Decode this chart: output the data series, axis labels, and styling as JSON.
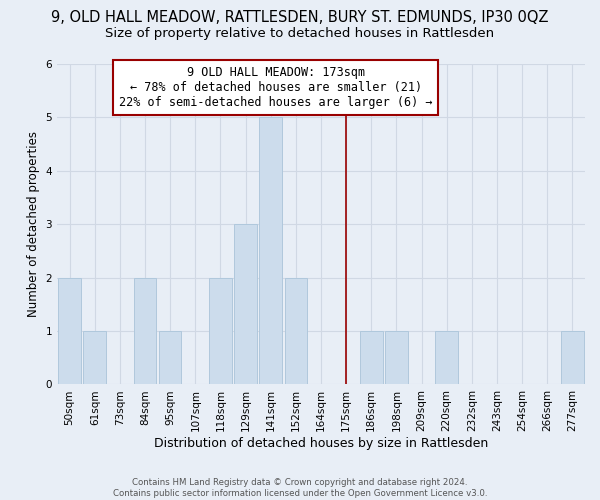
{
  "title": "9, OLD HALL MEADOW, RATTLESDEN, BURY ST. EDMUNDS, IP30 0QZ",
  "subtitle": "Size of property relative to detached houses in Rattlesden",
  "xlabel": "Distribution of detached houses by size in Rattlesden",
  "ylabel": "Number of detached properties",
  "bar_labels": [
    "50sqm",
    "61sqm",
    "73sqm",
    "84sqm",
    "95sqm",
    "107sqm",
    "118sqm",
    "129sqm",
    "141sqm",
    "152sqm",
    "164sqm",
    "175sqm",
    "186sqm",
    "198sqm",
    "209sqm",
    "220sqm",
    "232sqm",
    "243sqm",
    "254sqm",
    "266sqm",
    "277sqm"
  ],
  "bar_heights": [
    2,
    1,
    0,
    2,
    1,
    0,
    2,
    3,
    5,
    2,
    0,
    0,
    1,
    1,
    0,
    1,
    0,
    0,
    0,
    0,
    1
  ],
  "bar_color": "#ccdcec",
  "bar_edge_color": "#b0c8dc",
  "reference_line_x_label": "175sqm",
  "reference_line_color": "#990000",
  "ylim": [
    0,
    6
  ],
  "annotation_text": "9 OLD HALL MEADOW: 173sqm\n← 78% of detached houses are smaller (21)\n22% of semi-detached houses are larger (6) →",
  "annotation_box_color": "#ffffff",
  "annotation_box_edge_color": "#990000",
  "grid_color": "#d0d8e4",
  "bg_color": "#e8eef6",
  "footer_text": "Contains HM Land Registry data © Crown copyright and database right 2024.\nContains public sector information licensed under the Open Government Licence v3.0.",
  "title_fontsize": 10.5,
  "subtitle_fontsize": 9.5,
  "xlabel_fontsize": 9,
  "ylabel_fontsize": 8.5,
  "tick_fontsize": 7.5,
  "annotation_fontsize": 8.5
}
